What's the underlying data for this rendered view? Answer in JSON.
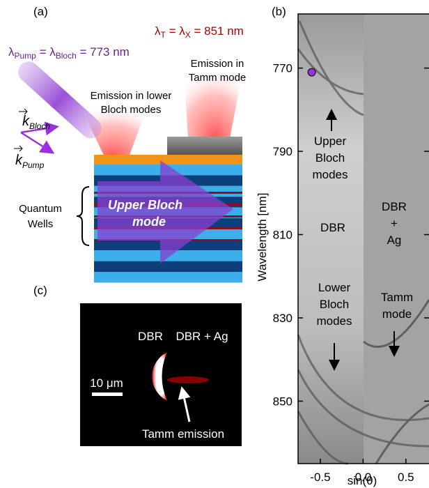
{
  "panel_a": {
    "label": "(a)",
    "pump": [
      "λ",
      "Pump",
      " = λ",
      "Bloch",
      " = 773 nm"
    ],
    "tamm_wavelength": [
      "λ",
      "T",
      " = λ",
      "X",
      " = 851 nm"
    ],
    "emission_tamm": [
      "Emission in",
      "Tamm mode"
    ],
    "emission_bloch": [
      "Emission in lower",
      "Bloch modes"
    ],
    "k_bloch": [
      "k",
      "Bloch"
    ],
    "k_pump": [
      "k",
      "Pump"
    ],
    "quantum_wells": [
      "Quantum",
      "Wells"
    ],
    "upper_bloch_mode": [
      "Upper Bloch",
      "mode"
    ]
  },
  "panel_b": {
    "label": "(b)",
    "ylabel": "Wavelength [nm]",
    "xlabel": "sin(θ)",
    "ylim": [
      757,
      865
    ],
    "yticks": [
      770,
      790,
      810,
      830,
      850
    ],
    "xlim": [
      -0.76,
      0.77
    ],
    "xticks": [
      -0.5,
      {
        "value": 0,
        "label": "0.0"
      },
      0.5
    ],
    "marker": {
      "x": -0.6,
      "y": 771
    },
    "upper_bloch": [
      "Upper",
      "Bloch",
      "modes"
    ],
    "dbr": "DBR",
    "dbr_ag": [
      "DBR",
      "+",
      "Ag"
    ],
    "lower_bloch": [
      "Lower",
      "Bloch",
      "modes"
    ],
    "tamm": [
      "Tamm",
      "mode"
    ]
  },
  "panel_c": {
    "label": "(c)",
    "dbr": "DBR",
    "dbr_ag": "DBR + Ag",
    "scale": "10 μm",
    "tamm_emission": "Tamm emission"
  }
}
